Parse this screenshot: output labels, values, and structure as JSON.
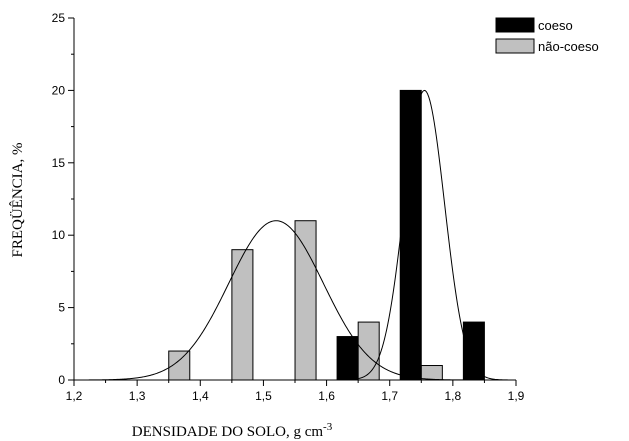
{
  "chart_data": {
    "type": "bar",
    "xlabel": "DENSIDADE DO SOLO, g cm",
    "xlabel_superscript": "-3",
    "ylabel": "FREQÜÊNCIA, %",
    "xlim": [
      1.2,
      1.9
    ],
    "ylim": [
      0,
      25
    ],
    "x_ticks": [
      "1,2",
      "1,3",
      "1,4",
      "1,5",
      "1,6",
      "1,7",
      "1,8",
      "1,9"
    ],
    "y_ticks": [
      "0",
      "5",
      "10",
      "15",
      "20",
      "25"
    ],
    "grid": false,
    "legend_position": "top-right",
    "bin_width": 0.0333,
    "series": [
      {
        "name": "coeso",
        "color": "#000000",
        "bins": [
          {
            "x": 1.6333,
            "value": 3
          },
          {
            "x": 1.7333,
            "value": 20
          },
          {
            "x": 1.8333,
            "value": 4
          }
        ],
        "fit": {
          "type": "normal",
          "mean": 1.755,
          "sd": 0.032,
          "peak": 20
        }
      },
      {
        "name": "não-coeso",
        "color": "#c0c0c0",
        "bins": [
          {
            "x": 1.3667,
            "value": 2
          },
          {
            "x": 1.4667,
            "value": 9
          },
          {
            "x": 1.5667,
            "value": 11
          },
          {
            "x": 1.6667,
            "value": 4
          },
          {
            "x": 1.7667,
            "value": 1
          }
        ],
        "fit": {
          "type": "normal",
          "mean": 1.52,
          "sd": 0.075,
          "peak": 11
        }
      }
    ]
  }
}
